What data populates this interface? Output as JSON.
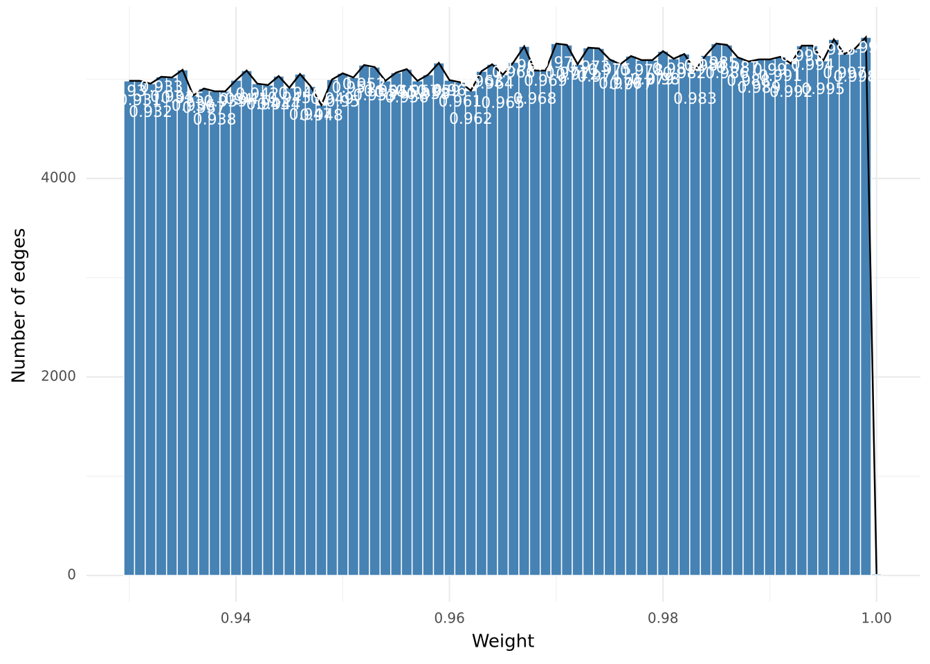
{
  "chart_data": {
    "type": "histogram",
    "x_label": "Weight",
    "y_label": "Number of edges",
    "x": [
      0.93,
      0.931,
      0.932,
      0.933,
      0.934,
      0.935,
      0.936,
      0.937,
      0.938,
      0.939,
      0.94,
      0.941,
      0.942,
      0.943,
      0.944,
      0.945,
      0.946,
      0.947,
      0.948,
      0.949,
      0.95,
      0.951,
      0.952,
      0.953,
      0.954,
      0.955,
      0.956,
      0.957,
      0.958,
      0.959,
      0.96,
      0.961,
      0.962,
      0.963,
      0.964,
      0.965,
      0.966,
      0.967,
      0.968,
      0.969,
      0.97,
      0.971,
      0.972,
      0.973,
      0.974,
      0.975,
      0.976,
      0.977,
      0.978,
      0.979,
      0.98,
      0.981,
      0.982,
      0.983,
      0.984,
      0.985,
      0.986,
      0.987,
      0.988,
      0.989,
      0.99,
      0.991,
      0.992,
      0.993,
      0.994,
      0.995,
      0.996,
      0.997,
      0.998,
      0.999,
      1
    ],
    "values": [
      4983,
      4983,
      4955,
      5024,
      5017,
      5094,
      4836,
      4906,
      4878,
      4878,
      4990,
      5087,
      4955,
      4941,
      5031,
      4913,
      5052,
      4927,
      4739,
      4997,
      5059,
      5017,
      5143,
      5122,
      4983,
      5066,
      5101,
      4983,
      5045,
      5164,
      4990,
      4969,
      4885,
      5080,
      5150,
      5045,
      5171,
      5331,
      5087,
      5087,
      5359,
      5345,
      5150,
      5317,
      5310,
      5199,
      5150,
      5233,
      5192,
      5192,
      5282,
      5206,
      5254,
      5087,
      5240,
      5359,
      5345,
      5220,
      5178,
      5199,
      5199,
      5226,
      5157,
      5338,
      5338,
      5185,
      5401,
      5254,
      5310,
      5422,
      14
    ],
    "bar_width": 0.001,
    "color": "#4682b4",
    "line_color": "#000000",
    "xlim": [
      0.926,
      1.0041
    ],
    "ylim": [
      -265,
      5728
    ],
    "xticks": [
      0.94,
      0.96,
      0.98,
      {
        "value": 1,
        "label": "1.00"
      }
    ],
    "yticks": [
      0,
      2000,
      4000
    ],
    "x_minor_ticks": [
      0.93,
      0.95,
      0.97,
      0.99
    ],
    "y_minor_ticks": [
      1000,
      3000,
      5000
    ],
    "grid": true
  }
}
